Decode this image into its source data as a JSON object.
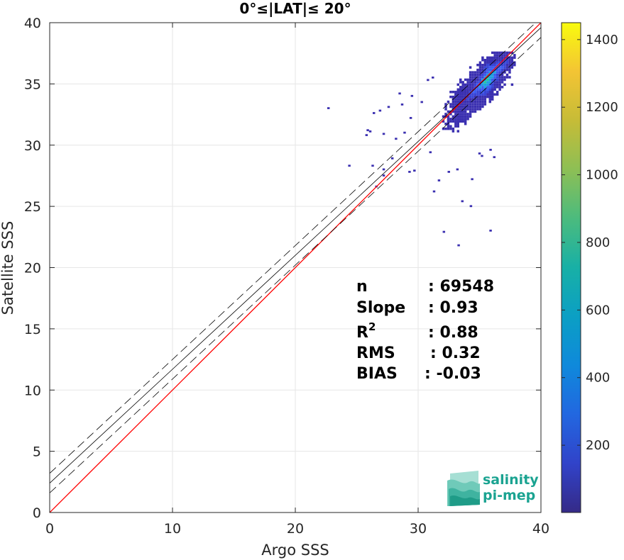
{
  "chart_data": {
    "type": "heatmap",
    "title": "0°≤|LAT|≤ 20°",
    "xlabel": "Argo SSS",
    "ylabel": "Satellite SSS",
    "xlim": [
      0,
      40
    ],
    "ylim": [
      0,
      40
    ],
    "xticks": [
      0,
      10,
      20,
      30,
      40
    ],
    "yticks": [
      0,
      5,
      10,
      15,
      20,
      25,
      30,
      35,
      40
    ],
    "grid": true,
    "colorbar": {
      "range": [
        1,
        1450
      ],
      "ticks": [
        200,
        400,
        600,
        800,
        1000,
        1200,
        1400
      ],
      "colormap": "parula"
    },
    "reference_line": {
      "name": "1:1",
      "slope": 1,
      "intercept": 0,
      "color": "#ff0000"
    },
    "fit_line": {
      "slope": 0.93,
      "intercept": 2.4,
      "color": "#000000"
    },
    "fit_bounds_offset": 0.8,
    "density": {
      "core_center": [
        35,
        34.6
      ],
      "core_extent_x": [
        31.5,
        37.8
      ],
      "sparse_points": [
        [
          22.6,
          33.1
        ],
        [
          28.4,
          34.3
        ],
        [
          26.3,
          32.7
        ],
        [
          26.8,
          32.9
        ],
        [
          27.5,
          33.2
        ],
        [
          25.7,
          30.9
        ],
        [
          25.8,
          31.3
        ],
        [
          26.0,
          31.2
        ],
        [
          27.1,
          31.0
        ],
        [
          24.3,
          28.4
        ],
        [
          26.2,
          28.4
        ],
        [
          27.1,
          28.1
        ],
        [
          27.8,
          29.0
        ],
        [
          27.1,
          27.6
        ],
        [
          26.5,
          26.7
        ],
        [
          29.2,
          27.9
        ],
        [
          31.6,
          27.2
        ],
        [
          33.1,
          28.1
        ],
        [
          32.4,
          27.9
        ],
        [
          34.3,
          27.3
        ],
        [
          35.1,
          29.2
        ],
        [
          35.8,
          29.7
        ],
        [
          33.5,
          25.5
        ],
        [
          34.2,
          25.1
        ],
        [
          32.0,
          23.0
        ],
        [
          35.8,
          23.1
        ],
        [
          33.2,
          21.9
        ],
        [
          30.9,
          29.5
        ],
        [
          29.6,
          28.0
        ],
        [
          31.2,
          26.3
        ],
        [
          34.9,
          29.4
        ],
        [
          36.1,
          29.1
        ],
        [
          28.1,
          30.6
        ],
        [
          28.8,
          31.1
        ],
        [
          29.3,
          32.3
        ],
        [
          30.2,
          33.6
        ],
        [
          29.4,
          34.1
        ],
        [
          28.6,
          33.4
        ],
        [
          30.7,
          35.4
        ],
        [
          31.1,
          35.6
        ]
      ]
    },
    "stats": [
      {
        "label": "n",
        "value": ": 69548"
      },
      {
        "label": "Slope",
        "value": ": 0.93"
      },
      {
        "label": "R",
        "sup": "2",
        "value": ": 0.88"
      },
      {
        "label": "RMS",
        "value": ": 0.32"
      },
      {
        "label": "BIAS",
        "value": ": -0.03"
      }
    ]
  },
  "logo": {
    "line1": "salinity",
    "line2": "pi-mep"
  },
  "colors": {
    "axis": "#262626",
    "grid": "#e6e6e6",
    "logo": "#1aa391"
  }
}
